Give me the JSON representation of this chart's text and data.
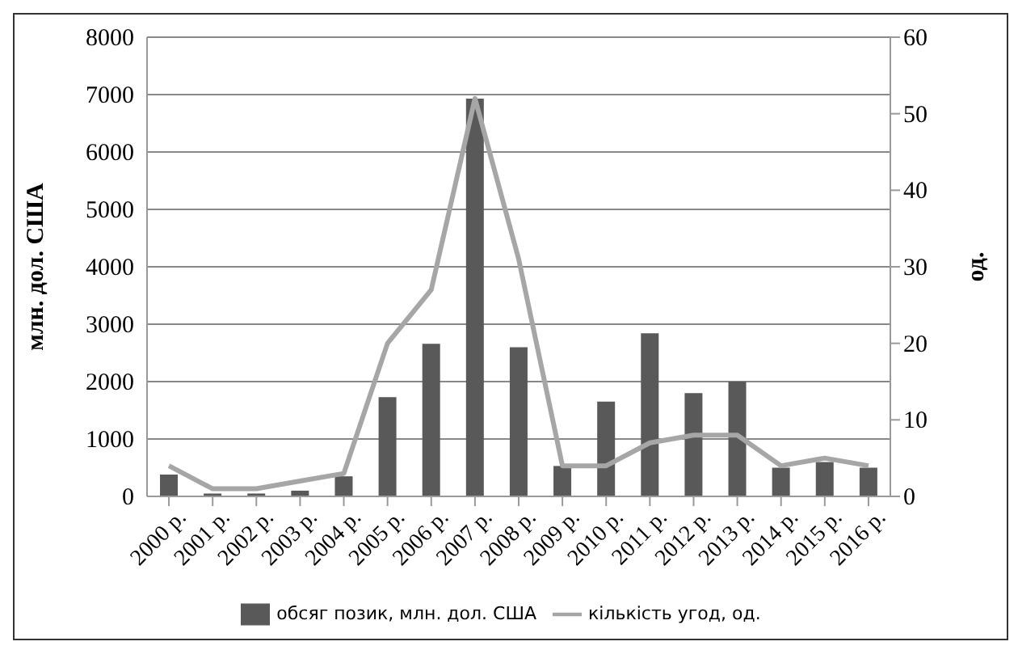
{
  "chart_data": {
    "type": "bar",
    "categories": [
      "2000 р.",
      "2001 р.",
      "2002 р.",
      "2003 р.",
      "2004 р.",
      "2005 р.",
      "2006 р.",
      "2007 р.",
      "2008 р.",
      "2009 р.",
      "2010 р.",
      "2011 р.",
      "2012 р.",
      "2013 р.",
      "2014 р.",
      "2015 р.",
      "2016 р."
    ],
    "series": [
      {
        "name": "обсяг позик, млн. дол. США",
        "color": "#595959",
        "values": [
          380,
          50,
          50,
          100,
          350,
          1730,
          2660,
          6930,
          2600,
          530,
          1650,
          2840,
          1800,
          2000,
          500,
          600,
          500
        ]
      },
      {
        "name": "кількість угод, од.",
        "type": "line",
        "axis": "y2",
        "color": "#a6a6a6",
        "values": [
          4,
          1,
          1,
          2,
          3,
          20,
          27,
          52,
          31,
          4,
          4,
          7,
          8,
          8,
          4,
          5,
          4
        ]
      }
    ],
    "ylabel": "млн. дол. США",
    "y2label": "од.",
    "ylim": [
      0,
      8000
    ],
    "yticks": [
      0,
      1000,
      2000,
      3000,
      4000,
      5000,
      6000,
      7000,
      8000
    ],
    "y2lim": [
      0,
      60
    ],
    "y2ticks": [
      0,
      10,
      20,
      30,
      40,
      50,
      60
    ],
    "grid": "y",
    "legend": "bottom",
    "marker": "none"
  }
}
